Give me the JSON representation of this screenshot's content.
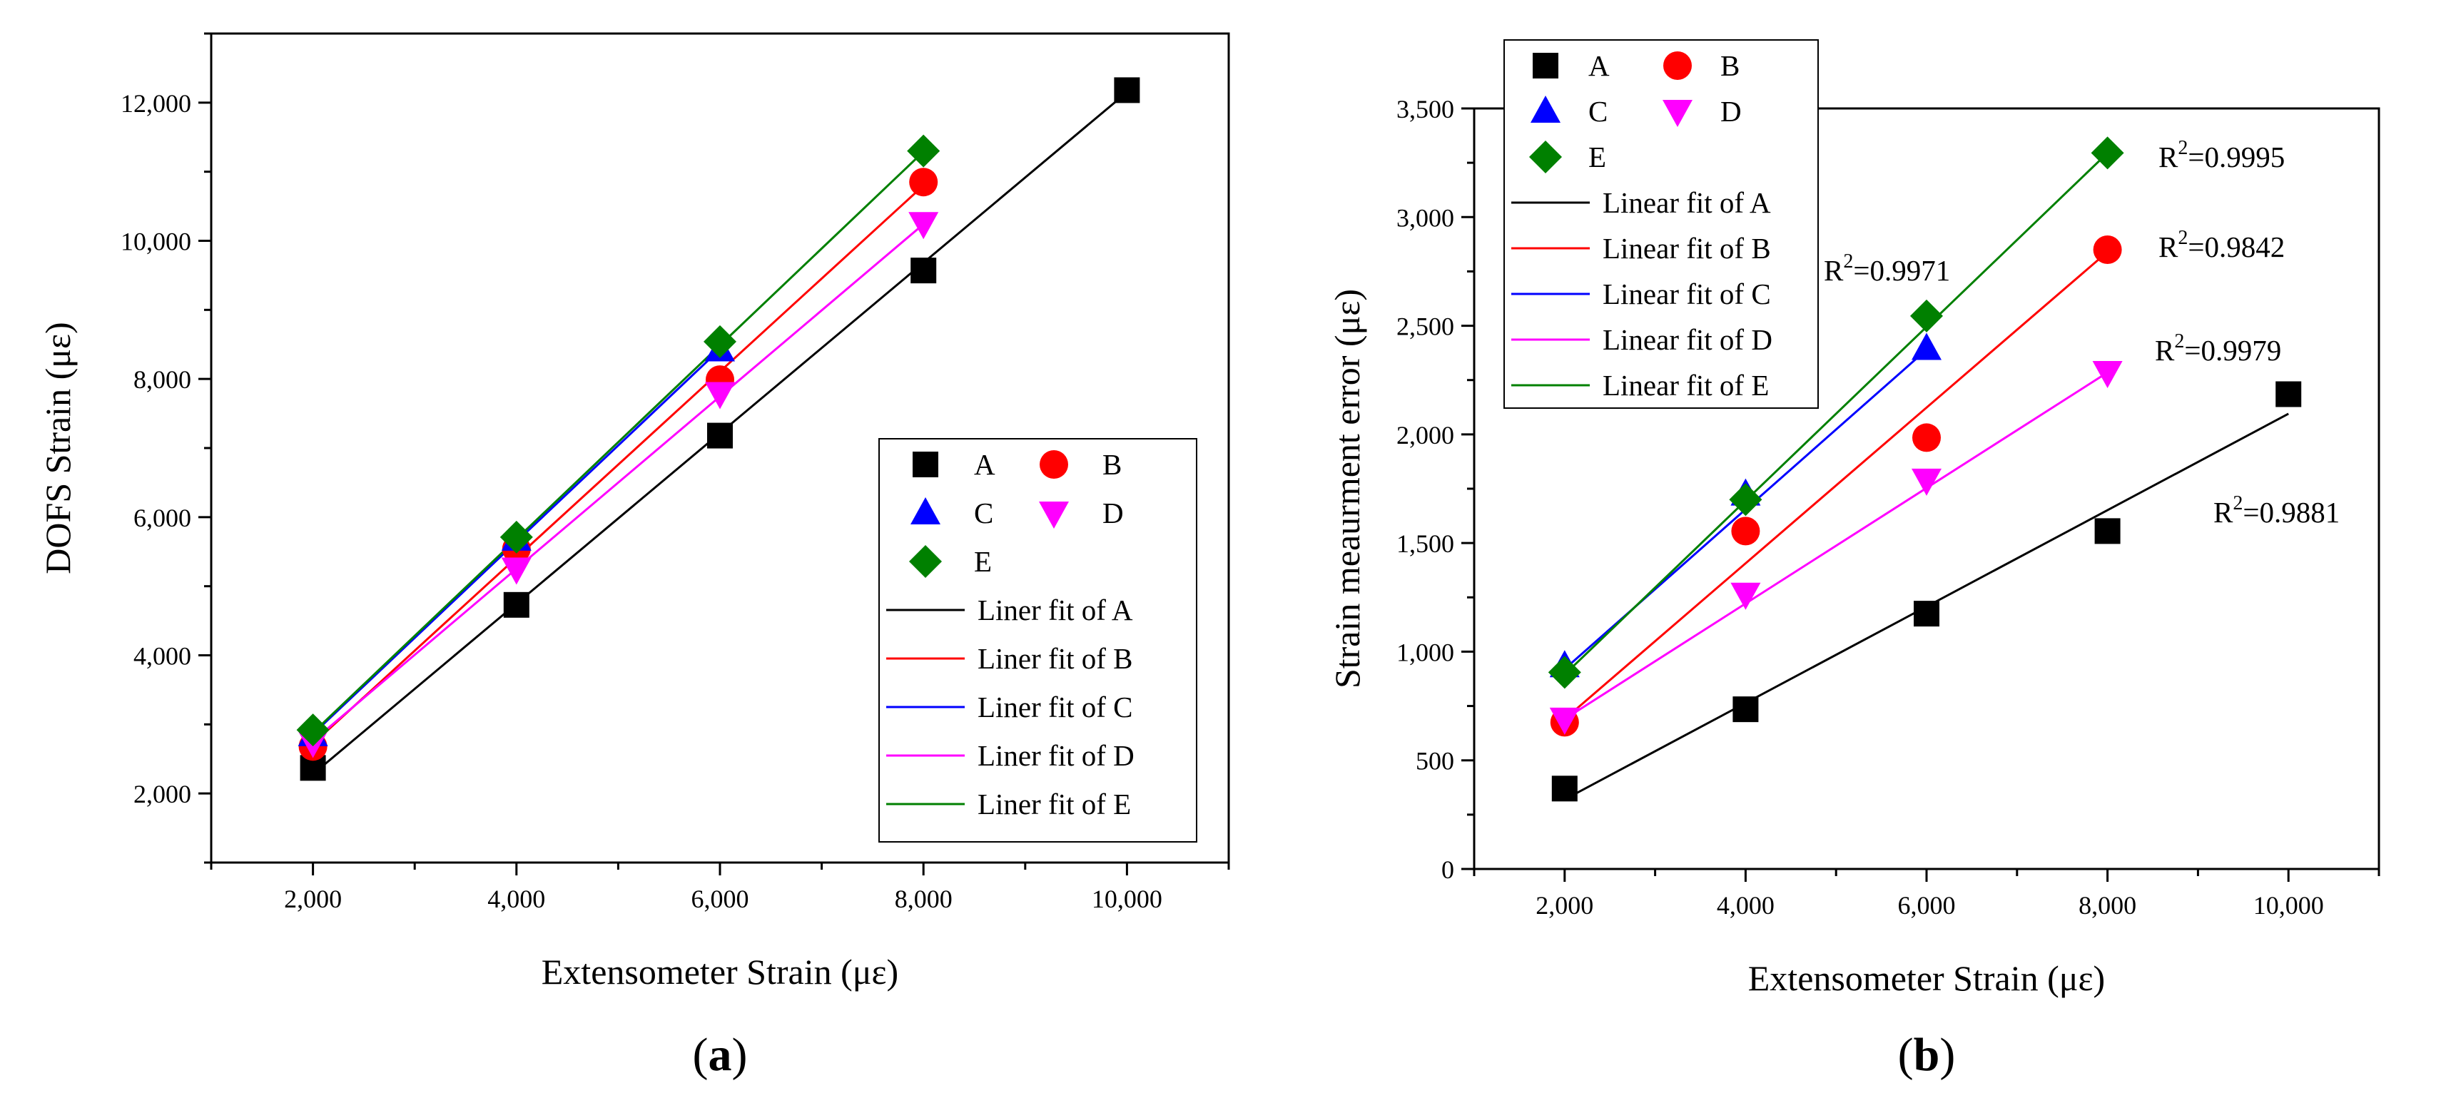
{
  "chart_data": [
    {
      "type": "scatter",
      "panel_label": "a",
      "xlabel": "Extensometer Strain (με)",
      "ylabel": "DOFS Strain (με)",
      "xlim": [
        1000,
        11000
      ],
      "ylim": [
        1000,
        13000
      ],
      "x_ticks": [
        2000,
        4000,
        6000,
        8000,
        10000
      ],
      "x_tick_labels": [
        "2,000",
        "4,000",
        "6,000",
        "8,000",
        "10,000"
      ],
      "y_ticks": [
        2000,
        4000,
        6000,
        8000,
        10000,
        12000
      ],
      "y_tick_labels": [
        "2,000",
        "4,000",
        "6,000",
        "8,000",
        "10,000",
        "12,000"
      ],
      "legend_position": "bottom-right",
      "series": [
        {
          "name": "A",
          "color": "#000000",
          "marker": "square",
          "x": [
            2000,
            4000,
            6000,
            8000,
            10000
          ],
          "y": [
            2370,
            4730,
            7180,
            9570,
            12180
          ]
        },
        {
          "name": "B",
          "color": "#ff0000",
          "marker": "circle",
          "x": [
            2000,
            4000,
            6000,
            8000
          ],
          "y": [
            2680,
            5540,
            7990,
            10850
          ]
        },
        {
          "name": "C",
          "color": "#0000ff",
          "marker": "triangle-up",
          "x": [
            2000,
            4000,
            6000
          ],
          "y": [
            2850,
            5680,
            8420
          ]
        },
        {
          "name": "D",
          "color": "#ff00ff",
          "marker": "triangle-down",
          "x": [
            2000,
            4000,
            6000,
            8000
          ],
          "y": [
            2740,
            5250,
            7790,
            10250
          ]
        },
        {
          "name": "E",
          "color": "#008000",
          "marker": "diamond",
          "x": [
            2000,
            4000,
            6000,
            8000
          ],
          "y": [
            2920,
            5710,
            8540,
            11300
          ]
        }
      ],
      "fits": [
        {
          "name": "Liner fit of A",
          "color": "#000000",
          "x": [
            2000,
            10000
          ],
          "y": [
            2280,
            12150
          ]
        },
        {
          "name": "Liner fit of B",
          "color": "#ff0000",
          "x": [
            2000,
            8000
          ],
          "y": [
            2720,
            10800
          ]
        },
        {
          "name": "Liner fit of C",
          "color": "#0000ff",
          "x": [
            2000,
            6000
          ],
          "y": [
            2860,
            8430
          ]
        },
        {
          "name": "Liner fit of D",
          "color": "#ff00ff",
          "x": [
            2000,
            8000
          ],
          "y": [
            2760,
            10240
          ]
        },
        {
          "name": "Liner fit of E",
          "color": "#008000",
          "x": [
            2000,
            8000
          ],
          "y": [
            2880,
            11290
          ]
        }
      ]
    },
    {
      "type": "scatter",
      "panel_label": "b",
      "xlabel": "Extensometer Strain (με)",
      "ylabel": "Strain meaurment error (με)",
      "xlim": [
        1000,
        11000
      ],
      "ylim": [
        0,
        3500
      ],
      "x_ticks": [
        2000,
        4000,
        6000,
        8000,
        10000
      ],
      "x_tick_labels": [
        "2,000",
        "4,000",
        "6,000",
        "8,000",
        "10,000"
      ],
      "y_ticks": [
        0,
        500,
        1000,
        1500,
        2000,
        2500,
        3000,
        3500
      ],
      "y_tick_labels": [
        "0",
        "500",
        "1,000",
        "1,500",
        "2,000",
        "2,500",
        "3,000",
        "3,500"
      ],
      "legend_position": "top-left",
      "series": [
        {
          "name": "A",
          "color": "#000000",
          "marker": "square",
          "x": [
            2000,
            4000,
            6000,
            8000,
            10000
          ],
          "y": [
            370,
            735,
            1175,
            1555,
            2185
          ]
        },
        {
          "name": "B",
          "color": "#ff0000",
          "marker": "circle",
          "x": [
            2000,
            4000,
            6000,
            8000
          ],
          "y": [
            675,
            1555,
            1985,
            2850
          ]
        },
        {
          "name": "C",
          "color": "#0000ff",
          "marker": "triangle-up",
          "x": [
            2000,
            4000,
            6000
          ],
          "y": [
            935,
            1725,
            2395
          ]
        },
        {
          "name": "D",
          "color": "#ff00ff",
          "marker": "triangle-down",
          "x": [
            2000,
            4000,
            6000,
            8000
          ],
          "y": [
            690,
            1265,
            1790,
            2285
          ]
        },
        {
          "name": "E",
          "color": "#008000",
          "marker": "diamond",
          "x": [
            2000,
            4000,
            6000,
            8000
          ],
          "y": [
            905,
            1700,
            2545,
            3295
          ]
        }
      ],
      "fits": [
        {
          "name": "Linear fit of A",
          "color": "#000000",
          "x": [
            2000,
            10000
          ],
          "y": [
            320,
            2095
          ]
        },
        {
          "name": "Linear fit of B",
          "color": "#ff0000",
          "x": [
            2000,
            8000
          ],
          "y": [
            690,
            2840
          ]
        },
        {
          "name": "Linear fit of C",
          "color": "#0000ff",
          "x": [
            2000,
            6000
          ],
          "y": [
            920,
            2390
          ]
        },
        {
          "name": "Linear fit of D",
          "color": "#ff00ff",
          "x": [
            2000,
            8000
          ],
          "y": [
            690,
            2285
          ]
        },
        {
          "name": "Linear fit of E",
          "color": "#008000",
          "x": [
            2000,
            8000
          ],
          "y": [
            895,
            3295
          ]
        }
      ],
      "annotations": [
        "R2=0.9971",
        "R2=0.9995",
        "R2=0.9842",
        "R2=0.9979",
        "R2=0.9881"
      ]
    }
  ]
}
